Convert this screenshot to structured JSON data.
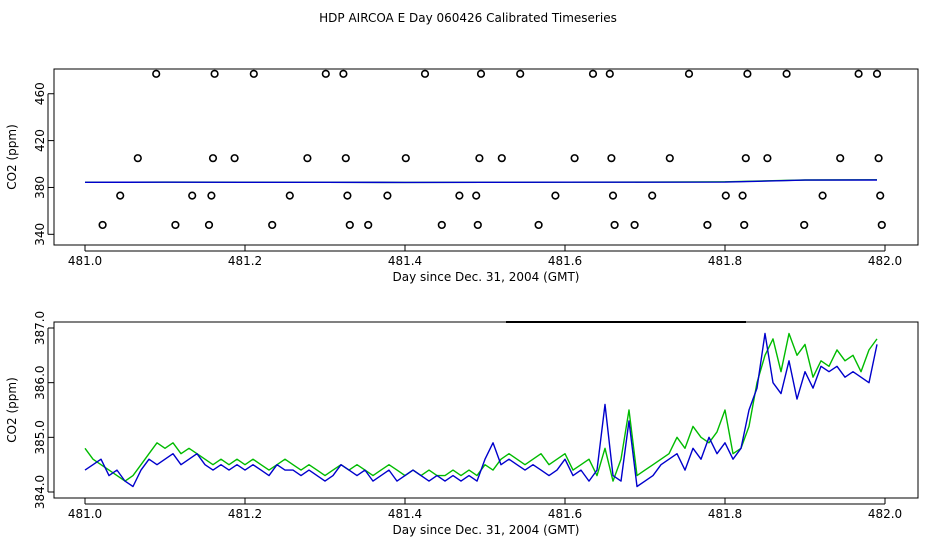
{
  "title": "HDP AIRCOA E  Day 060426  Calibrated Timeseries",
  "colors": {
    "axis": "#000000",
    "series_green": "#00bb00",
    "series_blue": "#0000cc"
  },
  "chart_data": [
    {
      "type": "scatter",
      "xlabel": "Day since Dec. 31, 2004 (GMT)",
      "ylabel": "CO2 (ppm)",
      "xlim": [
        481.0,
        482.0
      ],
      "ylim": [
        336,
        476
      ],
      "xticks": [
        "481.0",
        "481.2",
        "481.4",
        "481.6",
        "481.8",
        "482.0"
      ],
      "xtick_values": [
        481.0,
        481.2,
        481.4,
        481.6,
        481.8,
        482.0
      ],
      "yticks": [
        "340",
        "380",
        "420",
        "460"
      ],
      "ytick_values": [
        340,
        380,
        420,
        460
      ],
      "grid": false,
      "legend": "none",
      "series": [
        {
          "marker": "open-circle",
          "points": [
            [
              481.022,
              348
            ],
            [
              481.044,
              373
            ],
            [
              481.066,
              405
            ],
            [
              481.089,
              477
            ],
            [
              481.113,
              348
            ],
            [
              481.134,
              373
            ],
            [
              481.155,
              348
            ],
            [
              481.158,
              373
            ],
            [
              481.16,
              405
            ],
            [
              481.162,
              477
            ],
            [
              481.187,
              405
            ],
            [
              481.211,
              477
            ],
            [
              481.234,
              348
            ],
            [
              481.256,
              373
            ],
            [
              481.278,
              405
            ],
            [
              481.301,
              477
            ],
            [
              481.323,
              477
            ],
            [
              481.326,
              405
            ],
            [
              481.328,
              373
            ],
            [
              481.331,
              348
            ],
            [
              481.354,
              348
            ],
            [
              481.378,
              373
            ],
            [
              481.401,
              405
            ],
            [
              481.425,
              477
            ],
            [
              481.446,
              348
            ],
            [
              481.468,
              373
            ],
            [
              481.489,
              373
            ],
            [
              481.491,
              348
            ],
            [
              481.493,
              405
            ],
            [
              481.495,
              477
            ],
            [
              481.521,
              405
            ],
            [
              481.544,
              477
            ],
            [
              481.567,
              348
            ],
            [
              481.588,
              373
            ],
            [
              481.612,
              405
            ],
            [
              481.635,
              477
            ],
            [
              481.656,
              477
            ],
            [
              481.658,
              405
            ],
            [
              481.66,
              373
            ],
            [
              481.662,
              348
            ],
            [
              481.687,
              348
            ],
            [
              481.709,
              373
            ],
            [
              481.731,
              405
            ],
            [
              481.755,
              477
            ],
            [
              481.778,
              348
            ],
            [
              481.801,
              373
            ],
            [
              481.822,
              373
            ],
            [
              481.824,
              348
            ],
            [
              481.826,
              405
            ],
            [
              481.828,
              477
            ],
            [
              481.853,
              405
            ],
            [
              481.877,
              477
            ],
            [
              481.899,
              348
            ],
            [
              481.922,
              373
            ],
            [
              481.944,
              405
            ],
            [
              481.967,
              477
            ],
            [
              481.99,
              477
            ],
            [
              481.992,
              405
            ],
            [
              481.994,
              373
            ],
            [
              481.996,
              348
            ]
          ]
        },
        {
          "color": "#00bb00",
          "x": [
            481.0,
            481.1,
            481.2,
            481.3,
            481.4,
            481.5,
            481.6,
            481.7,
            481.8,
            481.9,
            481.99
          ],
          "values": [
            384.5,
            384.6,
            384.5,
            384.4,
            384.3,
            384.4,
            384.5,
            384.6,
            384.8,
            386.4,
            386.5
          ]
        },
        {
          "color": "#0000cc",
          "x": [
            481.0,
            481.1,
            481.2,
            481.3,
            481.4,
            481.5,
            481.6,
            481.7,
            481.8,
            481.9,
            481.99
          ],
          "values": [
            384.4,
            384.5,
            384.4,
            384.4,
            384.3,
            384.4,
            384.5,
            384.5,
            384.6,
            386.3,
            386.4
          ]
        }
      ]
    },
    {
      "type": "line",
      "xlabel": "Day since Dec. 31, 2004 (GMT)",
      "ylabel": "CO2 (ppm)",
      "xlim": [
        481.0,
        482.0
      ],
      "ylim": [
        384.0,
        387.0
      ],
      "xticks": [
        "481.0",
        "481.2",
        "481.4",
        "481.6",
        "481.8",
        "482.0"
      ],
      "xtick_values": [
        481.0,
        481.2,
        481.4,
        481.6,
        481.8,
        482.0
      ],
      "yticks": [
        "384.0",
        "385.0",
        "386.0",
        "387.0"
      ],
      "ytick_values": [
        384.0,
        385.0,
        386.0,
        387.0
      ],
      "grid": false,
      "legend": "none",
      "series": [
        {
          "color": "#00bb00",
          "x": [
            481.0,
            481.01,
            481.02,
            481.03,
            481.04,
            481.05,
            481.06,
            481.07,
            481.08,
            481.09,
            481.1,
            481.11,
            481.12,
            481.13,
            481.14,
            481.15,
            481.16,
            481.17,
            481.18,
            481.19,
            481.2,
            481.21,
            481.22,
            481.23,
            481.24,
            481.25,
            481.26,
            481.27,
            481.28,
            481.29,
            481.3,
            481.31,
            481.32,
            481.33,
            481.34,
            481.35,
            481.36,
            481.37,
            481.38,
            481.39,
            481.4,
            481.41,
            481.42,
            481.43,
            481.44,
            481.45,
            481.46,
            481.47,
            481.48,
            481.49,
            481.5,
            481.51,
            481.52,
            481.53,
            481.54,
            481.55,
            481.56,
            481.57,
            481.58,
            481.59,
            481.6,
            481.61,
            481.62,
            481.63,
            481.64,
            481.65,
            481.66,
            481.67,
            481.68,
            481.69,
            481.7,
            481.71,
            481.72,
            481.73,
            481.74,
            481.75,
            481.76,
            481.77,
            481.78,
            481.79,
            481.8,
            481.81,
            481.82,
            481.83,
            481.84,
            481.85,
            481.86,
            481.87,
            481.88,
            481.89,
            481.9,
            481.91,
            481.92,
            481.93,
            481.94,
            481.95,
            481.96,
            481.97,
            481.98,
            481.99
          ],
          "values": [
            384.8,
            384.6,
            384.5,
            384.4,
            384.3,
            384.2,
            384.3,
            384.5,
            384.7,
            384.9,
            384.8,
            384.9,
            384.7,
            384.8,
            384.7,
            384.6,
            384.5,
            384.6,
            384.5,
            384.6,
            384.5,
            384.6,
            384.5,
            384.4,
            384.5,
            384.6,
            384.5,
            384.4,
            384.5,
            384.4,
            384.3,
            384.4,
            384.5,
            384.4,
            384.5,
            384.4,
            384.3,
            384.4,
            384.5,
            384.4,
            384.3,
            384.4,
            384.3,
            384.4,
            384.3,
            384.3,
            384.4,
            384.3,
            384.4,
            384.3,
            384.5,
            384.4,
            384.6,
            384.7,
            384.6,
            384.5,
            384.6,
            384.7,
            384.5,
            384.6,
            384.7,
            384.4,
            384.5,
            384.6,
            384.3,
            384.8,
            384.2,
            384.6,
            385.5,
            384.3,
            384.4,
            384.5,
            384.6,
            384.7,
            385.0,
            384.8,
            385.2,
            385.0,
            384.9,
            385.1,
            385.5,
            384.7,
            384.8,
            385.2,
            386.0,
            386.5,
            386.8,
            386.2,
            386.9,
            386.5,
            386.7,
            386.1,
            386.4,
            386.3,
            386.6,
            386.4,
            386.5,
            386.2,
            386.6,
            386.8
          ]
        },
        {
          "color": "#0000cc",
          "x": [
            481.0,
            481.01,
            481.02,
            481.03,
            481.04,
            481.05,
            481.06,
            481.07,
            481.08,
            481.09,
            481.1,
            481.11,
            481.12,
            481.13,
            481.14,
            481.15,
            481.16,
            481.17,
            481.18,
            481.19,
            481.2,
            481.21,
            481.22,
            481.23,
            481.24,
            481.25,
            481.26,
            481.27,
            481.28,
            481.29,
            481.3,
            481.31,
            481.32,
            481.33,
            481.34,
            481.35,
            481.36,
            481.37,
            481.38,
            481.39,
            481.4,
            481.41,
            481.42,
            481.43,
            481.44,
            481.45,
            481.46,
            481.47,
            481.48,
            481.49,
            481.5,
            481.51,
            481.52,
            481.53,
            481.54,
            481.55,
            481.56,
            481.57,
            481.58,
            481.59,
            481.6,
            481.61,
            481.62,
            481.63,
            481.64,
            481.65,
            481.66,
            481.67,
            481.68,
            481.69,
            481.7,
            481.71,
            481.72,
            481.73,
            481.74,
            481.75,
            481.76,
            481.77,
            481.78,
            481.79,
            481.8,
            481.81,
            481.82,
            481.83,
            481.84,
            481.85,
            481.86,
            481.87,
            481.88,
            481.89,
            481.9,
            481.91,
            481.92,
            481.93,
            481.94,
            481.95,
            481.96,
            481.97,
            481.98,
            481.99
          ],
          "values": [
            384.4,
            384.5,
            384.6,
            384.3,
            384.4,
            384.2,
            384.1,
            384.4,
            384.6,
            384.5,
            384.6,
            384.7,
            384.5,
            384.6,
            384.7,
            384.5,
            384.4,
            384.5,
            384.4,
            384.5,
            384.4,
            384.5,
            384.4,
            384.3,
            384.5,
            384.4,
            384.4,
            384.3,
            384.4,
            384.3,
            384.2,
            384.3,
            384.5,
            384.4,
            384.3,
            384.4,
            384.2,
            384.3,
            384.4,
            384.2,
            384.3,
            384.4,
            384.3,
            384.2,
            384.3,
            384.2,
            384.3,
            384.2,
            384.3,
            384.2,
            384.6,
            384.9,
            384.5,
            384.6,
            384.5,
            384.4,
            384.5,
            384.4,
            384.3,
            384.4,
            384.6,
            384.3,
            384.4,
            384.2,
            384.4,
            385.6,
            384.3,
            384.2,
            385.3,
            384.1,
            384.2,
            384.3,
            384.5,
            384.6,
            384.7,
            384.4,
            384.8,
            384.6,
            385.0,
            384.7,
            384.9,
            384.6,
            384.8,
            385.5,
            385.9,
            386.9,
            386.0,
            385.8,
            386.4,
            385.7,
            386.2,
            385.9,
            386.3,
            386.2,
            386.3,
            386.1,
            386.2,
            386.1,
            386.0,
            386.7
          ]
        }
      ],
      "annotations": [
        "horizontal-bar-top"
      ]
    }
  ]
}
